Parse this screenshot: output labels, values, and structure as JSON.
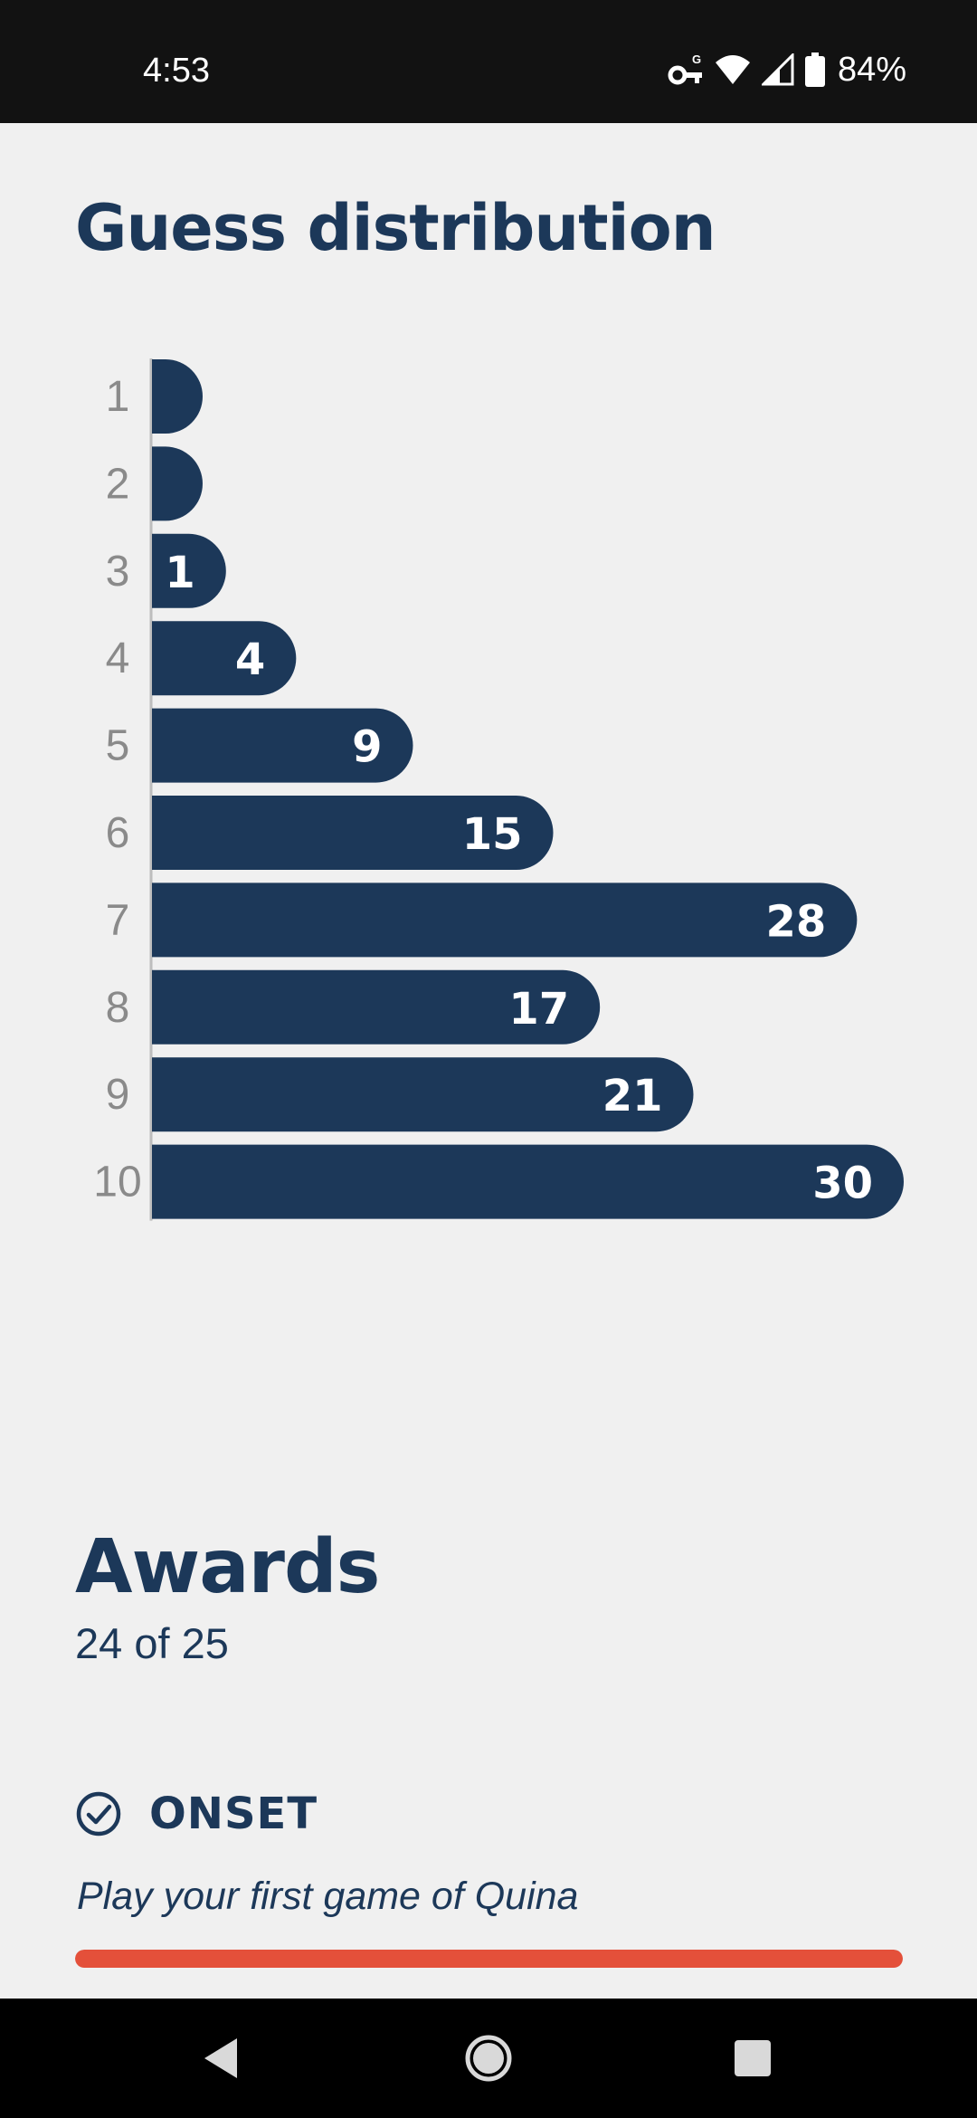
{
  "status_bar": {
    "time": "4:53",
    "battery": "84%",
    "icons": [
      "vpn-key-icon",
      "wifi-icon",
      "signal-icon",
      "battery-icon"
    ]
  },
  "guess_distribution": {
    "title": "Guess distribution"
  },
  "chart_data": {
    "type": "bar",
    "orientation": "horizontal",
    "categories": [
      "1",
      "2",
      "3",
      "4",
      "5",
      "6",
      "7",
      "8",
      "9",
      "10"
    ],
    "values": [
      0,
      0,
      1,
      4,
      9,
      15,
      28,
      17,
      21,
      30
    ],
    "value_labels": [
      "",
      "",
      "1",
      "4",
      "9",
      "15",
      "28",
      "17",
      "21",
      "30"
    ],
    "xlim": [
      0,
      30
    ],
    "grid": false,
    "bar_color": "#1c3859",
    "label_color": "#ffffff",
    "category_label_color": "#8a8a8a"
  },
  "awards": {
    "title": "Awards",
    "count_text": "24 of 25",
    "items": [
      {
        "name": "ONSET",
        "description": "Play your first game of Quina",
        "completed": true,
        "progress": 1.0,
        "progress_color": "#e4503a"
      }
    ]
  },
  "nav": {
    "icons": [
      "back-icon",
      "home-icon",
      "recents-icon"
    ]
  }
}
